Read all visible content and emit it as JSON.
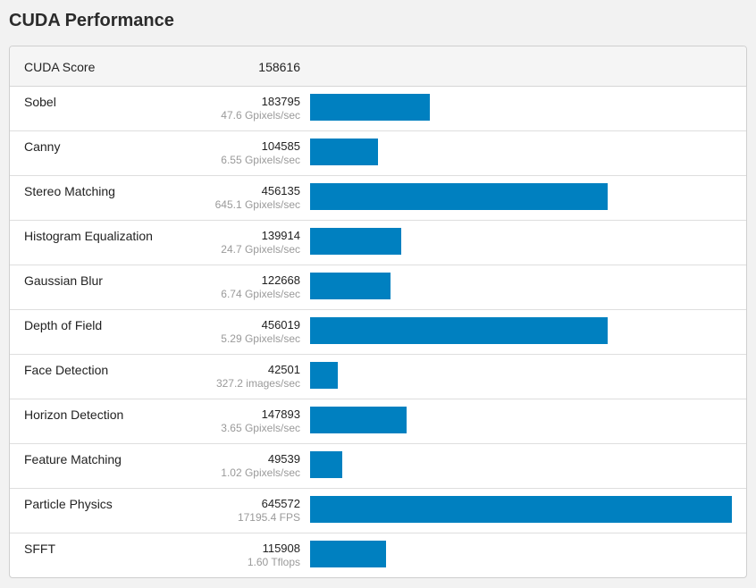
{
  "page_title": "CUDA Performance",
  "summary": {
    "label": "CUDA Score",
    "value": "158616"
  },
  "colors": {
    "bar": "#0080c0"
  },
  "chart_data": {
    "type": "bar",
    "orientation": "horizontal",
    "xlim": [
      0,
      645572
    ],
    "categories": [
      "Sobel",
      "Canny",
      "Stereo Matching",
      "Histogram Equalization",
      "Gaussian Blur",
      "Depth of Field",
      "Face Detection",
      "Horizon Detection",
      "Feature Matching",
      "Particle Physics",
      "SFFT"
    ],
    "values": [
      183795,
      104585,
      456135,
      139914,
      122668,
      456019,
      42501,
      147893,
      49539,
      645572,
      115908
    ],
    "value_labels": [
      "183795",
      "104585",
      "456135",
      "139914",
      "122668",
      "456019",
      "42501",
      "147893",
      "49539",
      "645572",
      "115908"
    ],
    "rate_labels": [
      "47.6 Gpixels/sec",
      "6.55 Gpixels/sec",
      "645.1 Gpixels/sec",
      "24.7 Gpixels/sec",
      "6.74 Gpixels/sec",
      "5.29 Gpixels/sec",
      "327.2 images/sec",
      "3.65 Gpixels/sec",
      "1.02 Gpixels/sec",
      "17195.4 FPS",
      "1.60 Tflops"
    ]
  }
}
